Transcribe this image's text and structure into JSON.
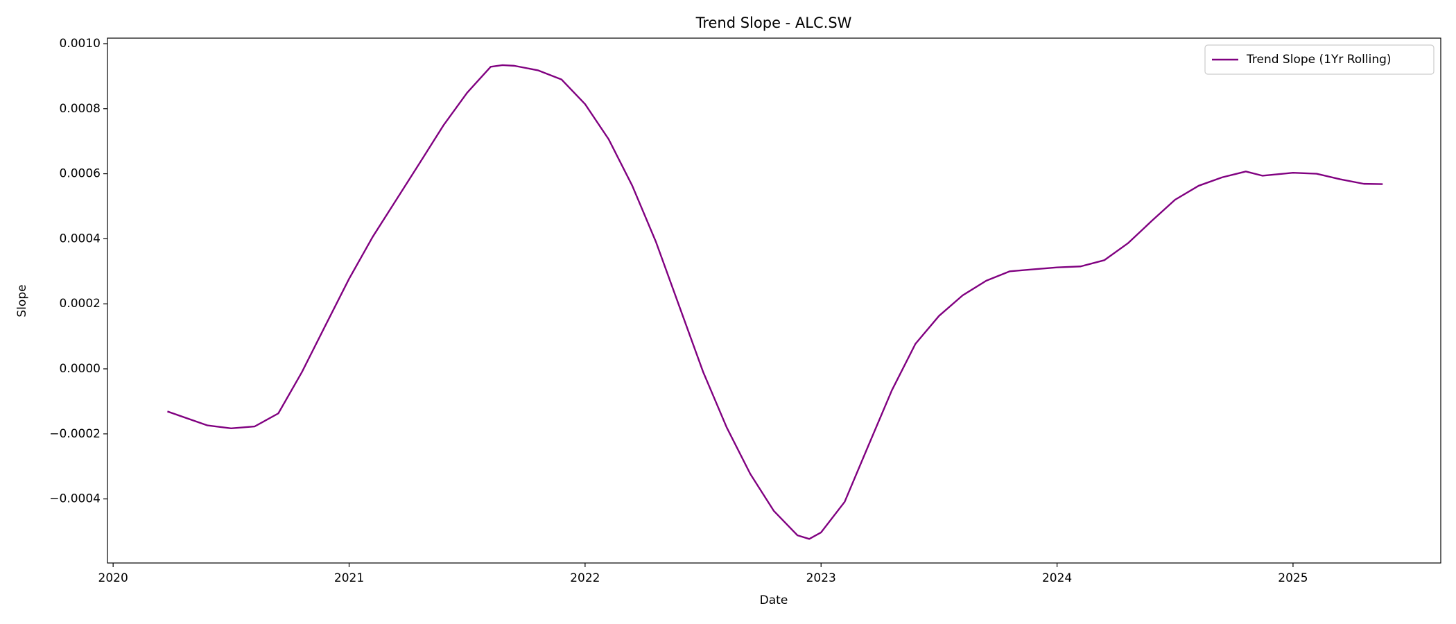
{
  "chart_data": {
    "type": "line",
    "title": "Trend Slope - ALC.SW",
    "x_label": "Date",
    "y_label": "Slope",
    "x": [
      2020.23,
      2020.4,
      2020.5,
      2020.6,
      2020.7,
      2020.8,
      2020.9,
      2021.0,
      2021.1,
      2021.2,
      2021.3,
      2021.4,
      2021.5,
      2021.6,
      2021.65,
      2021.7,
      2021.8,
      2021.9,
      2022.0,
      2022.1,
      2022.2,
      2022.3,
      2022.4,
      2022.5,
      2022.6,
      2022.7,
      2022.8,
      2022.9,
      2022.95,
      2023.0,
      2023.1,
      2023.2,
      2023.3,
      2023.4,
      2023.5,
      2023.6,
      2023.7,
      2023.8,
      2023.9,
      2024.0,
      2024.1,
      2024.2,
      2024.3,
      2024.4,
      2024.5,
      2024.6,
      2024.7,
      2024.8,
      2024.87,
      2025.0,
      2025.1,
      2025.2,
      2025.3,
      2025.38
    ],
    "series": [
      {
        "name": "Trend Slope (1Yr Rolling)",
        "color": "#800080",
        "values": [
          -0.000131,
          -0.000174,
          -0.000183,
          -0.000177,
          -0.000137,
          -1e-05,
          0.000134,
          0.000277,
          0.000406,
          0.00052,
          0.000634,
          0.000749,
          0.000849,
          0.000929,
          0.000934,
          0.000932,
          0.000918,
          0.00089,
          0.000814,
          0.000706,
          0.000563,
          0.000391,
          0.000191,
          -9e-06,
          -0.00018,
          -0.000323,
          -0.000437,
          -0.000512,
          -0.000523,
          -0.000503,
          -0.000409,
          -0.000237,
          -6.6e-05,
          7.7e-05,
          0.000163,
          0.000226,
          0.000271,
          0.0003,
          0.000306,
          0.000312,
          0.000315,
          0.000334,
          0.000386,
          0.000454,
          0.00052,
          0.000563,
          0.000589,
          0.000607,
          0.000594,
          0.000603,
          0.0006,
          0.000583,
          0.000569,
          0.000568
        ]
      }
    ],
    "xlim": [
      2019.976,
      2025.626
    ],
    "ylim": [
      -0.000597,
      0.001017
    ],
    "xticks": [
      2020,
      2021,
      2022,
      2023,
      2024,
      2025
    ],
    "yticks": [
      {
        "value": -0.0004,
        "label": "−0.0004"
      },
      {
        "value": -0.0002,
        "label": "−0.0002"
      },
      {
        "value": 0,
        "label": "0.0000"
      },
      {
        "value": 0.0002,
        "label": "0.0002"
      },
      {
        "value": 0.0004,
        "label": "0.0004"
      },
      {
        "value": 0.0006,
        "label": "0.0006"
      },
      {
        "value": 0.0008,
        "label": "0.0008"
      },
      {
        "value": 0.001,
        "label": "0.0010"
      }
    ],
    "grid": false,
    "legend": "upper right"
  }
}
